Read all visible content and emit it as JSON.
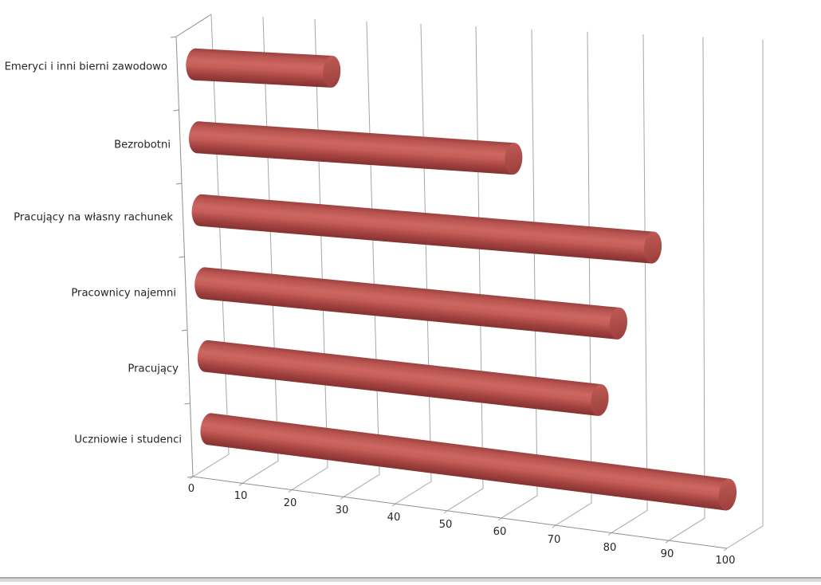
{
  "chart_data": {
    "type": "bar",
    "subtype": "3d-cylinder-horizontal",
    "title": "",
    "xlabel": "",
    "ylabel": "",
    "categories": [
      "Emeryci i inni bierni zawodowo",
      "Bezrobotni",
      "Pracujący na własny rachunek",
      "Pracownicy najemni",
      "Pracujący",
      "Uczniowie i studenci"
    ],
    "values": [
      26,
      60,
      86,
      79,
      75,
      99
    ],
    "value_axis": {
      "min": 0,
      "max": 100,
      "step": 10,
      "tick_labels": [
        "0",
        "10",
        "20",
        "30",
        "40",
        "50",
        "60",
        "70",
        "80",
        "90",
        "100"
      ]
    },
    "grid": true,
    "legend": false,
    "colors": {
      "bar_body_mid": "#c65d58",
      "bar_body_light": "#cd6761",
      "bar_body_upper": "#b95450",
      "bar_body_edge_top": "#9c4240",
      "bar_body_lower": "#a34340",
      "bar_body_edge_bottom": "#843230",
      "bar_cap_light": "#c05a55",
      "bar_cap_dark": "#993e3b",
      "gridline": "#a6a6a6",
      "axis_line": "#8f8f8f",
      "label_text": "#262626"
    }
  },
  "footer": {
    "divider_color": "#a9a9a9",
    "strip_color": "#d9d9d9"
  }
}
